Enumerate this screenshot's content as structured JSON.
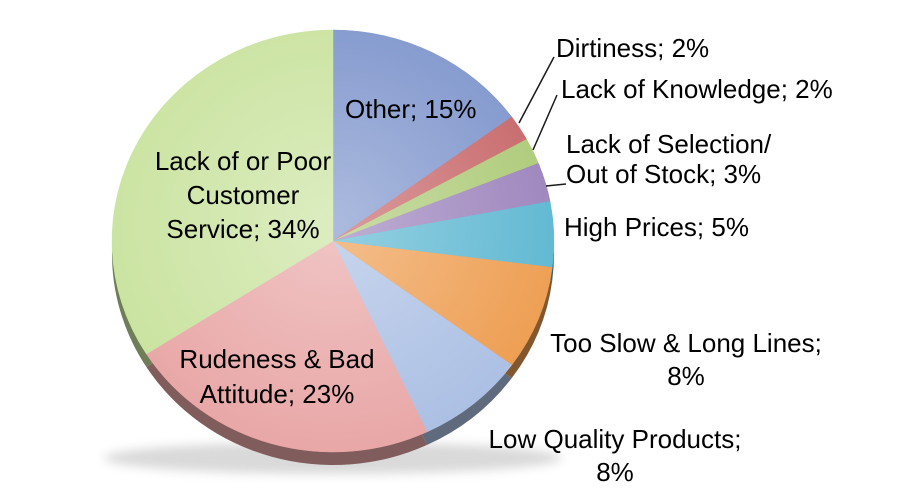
{
  "background": "#FFFFFF",
  "chart_data": {
    "type": "pie",
    "title": "",
    "unit": "%",
    "legend": "none",
    "grid": false,
    "label_style": "external and internal data labels; leader lines on small slices",
    "start_angle_deg": -90,
    "direction": "clockwise",
    "slices": [
      {
        "id": "other",
        "label": "Other",
        "value": 15,
        "color": "#8197CD",
        "display": "Other; 15%"
      },
      {
        "id": "dirtiness",
        "label": "Dirtiness",
        "value": 2,
        "color": "#C8696B",
        "display": "Dirtiness; 2%",
        "leader_line": true
      },
      {
        "id": "knowledge",
        "label": "Lack of Knowledge",
        "value": 2,
        "color": "#AECB79",
        "display": "Lack of Knowledge; 2%",
        "leader_line": true
      },
      {
        "id": "selection",
        "label": "Lack of Selection/Out of Stock",
        "value": 3,
        "color": "#9D85BD",
        "display_lines": [
          "Lack of Selection/",
          "Out of Stock; 3%"
        ],
        "leader_line": true
      },
      {
        "id": "high-prices",
        "label": "High Prices",
        "value": 5,
        "color": "#5FB8D2",
        "display": "High Prices; 5%"
      },
      {
        "id": "too-slow",
        "label": "Too Slow & Long Lines",
        "value": 8,
        "color": "#EE9E52",
        "display_lines": [
          "Too Slow & Long Lines;",
          "8%"
        ]
      },
      {
        "id": "low-quality",
        "label": "Low Quality Products",
        "value": 8,
        "color": "#ACC0E4",
        "display_lines": [
          "Low Quality Products;",
          "8%"
        ]
      },
      {
        "id": "rudeness",
        "label": "Rudeness & Bad Attitude",
        "value": 23,
        "color": "#E9A7A7",
        "display_lines": [
          "Rudeness & Bad",
          "Attitude; 23%"
        ]
      },
      {
        "id": "service",
        "label": "Lack of or Poor Customer Service",
        "value": 34,
        "color": "#CAE3A0",
        "display_lines": [
          "Lack of or Poor",
          "Customer",
          "Service; 34%"
        ]
      }
    ]
  }
}
